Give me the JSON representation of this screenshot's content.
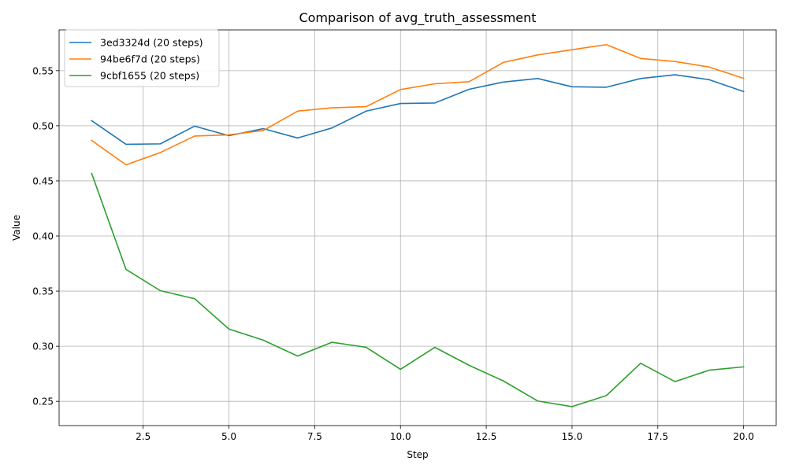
{
  "chart_data": {
    "type": "line",
    "title": "Comparison of avg_truth_assessment",
    "xlabel": "Step",
    "ylabel": "Value",
    "xlim": [
      0.05,
      20.95
    ],
    "ylim": [
      0.228,
      0.587
    ],
    "xticks": [
      2.5,
      5.0,
      7.5,
      10.0,
      12.5,
      15.0,
      17.5,
      20.0
    ],
    "xtick_labels": [
      "2.5",
      "5.0",
      "7.5",
      "10.0",
      "12.5",
      "15.0",
      "17.5",
      "20.0"
    ],
    "yticks": [
      0.25,
      0.3,
      0.35,
      0.4,
      0.45,
      0.5,
      0.55
    ],
    "ytick_labels": [
      "0.25",
      "0.30",
      "0.35",
      "0.40",
      "0.45",
      "0.50",
      "0.55"
    ],
    "grid": true,
    "legend_position": "upper-left",
    "x": [
      1,
      2,
      3,
      4,
      5,
      6,
      7,
      8,
      9,
      10,
      11,
      12,
      13,
      14,
      15,
      16,
      17,
      18,
      19,
      20
    ],
    "series": [
      {
        "name": "3ed3324d (20 steps)",
        "color": "#1f77b4",
        "values": [
          0.5046,
          0.4832,
          0.4836,
          0.4997,
          0.491,
          0.4974,
          0.4889,
          0.498,
          0.5133,
          0.5202,
          0.5207,
          0.5331,
          0.5397,
          0.5429,
          0.5354,
          0.535,
          0.5429,
          0.5463,
          0.5418,
          0.5311
        ]
      },
      {
        "name": "94be6f7d (20 steps)",
        "color": "#ff7f0e",
        "values": [
          0.4867,
          0.4646,
          0.4757,
          0.4907,
          0.4918,
          0.4957,
          0.5133,
          0.5163,
          0.5174,
          0.5329,
          0.5381,
          0.54,
          0.5575,
          0.5643,
          0.569,
          0.5736,
          0.5611,
          0.5583,
          0.5533,
          0.543
        ]
      },
      {
        "name": "9cbf1655 (20 steps)",
        "color": "#2ca02c",
        "values": [
          0.4567,
          0.3697,
          0.3504,
          0.3431,
          0.3156,
          0.3055,
          0.2911,
          0.3036,
          0.299,
          0.2791,
          0.299,
          0.2827,
          0.2685,
          0.2503,
          0.2452,
          0.2552,
          0.2845,
          0.2679,
          0.2783,
          0.2813
        ]
      }
    ]
  }
}
